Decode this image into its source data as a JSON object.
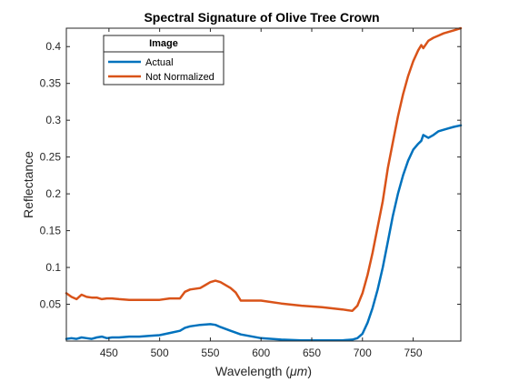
{
  "chart_data": {
    "type": "line",
    "title": "Spectral Signature of Olive Tree Crown",
    "xlabel_main": "Wavelength (",
    "xlabel_unit": "μm",
    "xlabel_close": ")",
    "ylabel": "Reflectance",
    "xlim": [
      408,
      797
    ],
    "ylim": [
      0,
      0.425
    ],
    "xticks": [
      450,
      500,
      550,
      600,
      650,
      700,
      750
    ],
    "yticks": [
      0.05,
      0.1,
      0.15,
      0.2,
      0.25,
      0.3,
      0.35,
      0.4
    ],
    "ytick_labels": [
      "0.05",
      "0.1",
      "0.15",
      "0.2",
      "0.25",
      "0.3",
      "0.35",
      "0.4"
    ],
    "grid": false,
    "legend": {
      "title": "Image",
      "placement": "top-left"
    },
    "series": [
      {
        "name": "Actual",
        "color": "#0072BD",
        "x": [
          408,
          413,
          418,
          423,
          428,
          433,
          438,
          443,
          448,
          453,
          460,
          470,
          480,
          490,
          500,
          510,
          520,
          525,
          530,
          540,
          550,
          555,
          560,
          570,
          580,
          600,
          620,
          640,
          660,
          680,
          690,
          695,
          700,
          705,
          710,
          715,
          720,
          725,
          730,
          735,
          740,
          745,
          750,
          755,
          758,
          760,
          765,
          770,
          775,
          780,
          785,
          790,
          797
        ],
        "y": [
          0.003,
          0.004,
          0.003,
          0.005,
          0.004,
          0.003,
          0.005,
          0.006,
          0.004,
          0.005,
          0.005,
          0.006,
          0.006,
          0.007,
          0.008,
          0.011,
          0.014,
          0.018,
          0.02,
          0.022,
          0.023,
          0.022,
          0.019,
          0.014,
          0.009,
          0.004,
          0.002,
          0.001,
          0.001,
          0.001,
          0.002,
          0.004,
          0.01,
          0.025,
          0.045,
          0.07,
          0.1,
          0.135,
          0.17,
          0.2,
          0.225,
          0.245,
          0.26,
          0.268,
          0.272,
          0.28,
          0.276,
          0.28,
          0.285,
          0.287,
          0.289,
          0.291,
          0.293
        ]
      },
      {
        "name": "Not Normalized",
        "color": "#D95319",
        "x": [
          408,
          413,
          418,
          423,
          428,
          433,
          438,
          443,
          448,
          453,
          460,
          470,
          480,
          490,
          500,
          510,
          520,
          525,
          530,
          540,
          545,
          550,
          555,
          560,
          570,
          575,
          580,
          600,
          620,
          640,
          660,
          680,
          690,
          695,
          700,
          705,
          710,
          715,
          720,
          725,
          730,
          735,
          740,
          745,
          750,
          755,
          758,
          760,
          765,
          770,
          775,
          780,
          790,
          797
        ],
        "y": [
          0.065,
          0.06,
          0.057,
          0.063,
          0.06,
          0.059,
          0.059,
          0.057,
          0.058,
          0.058,
          0.057,
          0.056,
          0.056,
          0.056,
          0.056,
          0.058,
          0.058,
          0.067,
          0.07,
          0.072,
          0.076,
          0.08,
          0.082,
          0.08,
          0.072,
          0.066,
          0.055,
          0.055,
          0.051,
          0.048,
          0.046,
          0.043,
          0.041,
          0.048,
          0.065,
          0.09,
          0.12,
          0.155,
          0.19,
          0.235,
          0.27,
          0.305,
          0.335,
          0.36,
          0.38,
          0.395,
          0.402,
          0.398,
          0.408,
          0.412,
          0.415,
          0.418,
          0.422,
          0.425
        ]
      }
    ]
  }
}
